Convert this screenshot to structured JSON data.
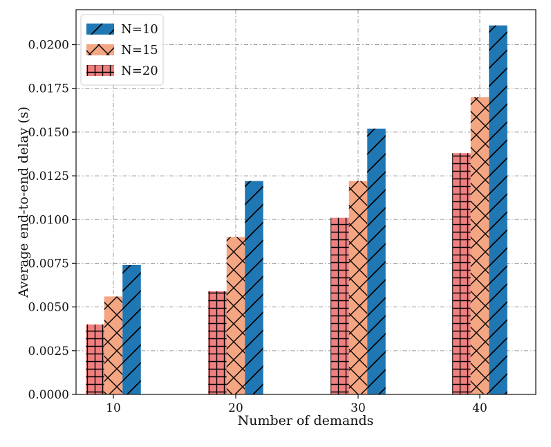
{
  "chart_data": {
    "type": "bar",
    "title": "",
    "xlabel": "Number of demands",
    "ylabel": "Average end-to-end delay (s)",
    "categories": [
      "10",
      "20",
      "30",
      "40"
    ],
    "ylim": [
      0,
      0.022
    ],
    "yticks": [
      "0.0000",
      "0.0025",
      "0.0050",
      "0.0075",
      "0.0100",
      "0.0125",
      "0.0150",
      "0.0175",
      "0.0200"
    ],
    "ytick_values": [
      0,
      0.0025,
      0.005,
      0.0075,
      0.01,
      0.0125,
      0.015,
      0.0175,
      0.02
    ],
    "grid": true,
    "legend_position": "top-left",
    "series": [
      {
        "name": "N=20",
        "values": [
          0.004,
          0.0059,
          0.0101,
          0.0138
        ],
        "color": "#f08080",
        "hatch": "grid"
      },
      {
        "name": "N=15",
        "values": [
          0.0056,
          0.009,
          0.0122,
          0.017
        ],
        "color": "#f4a582",
        "hatch": "cross"
      },
      {
        "name": "N=10",
        "values": [
          0.0074,
          0.0122,
          0.0152,
          0.0211
        ],
        "color": "#1f77b4",
        "hatch": "diagonal"
      }
    ],
    "legend_order": [
      "N=10",
      "N=15",
      "N=20"
    ]
  }
}
